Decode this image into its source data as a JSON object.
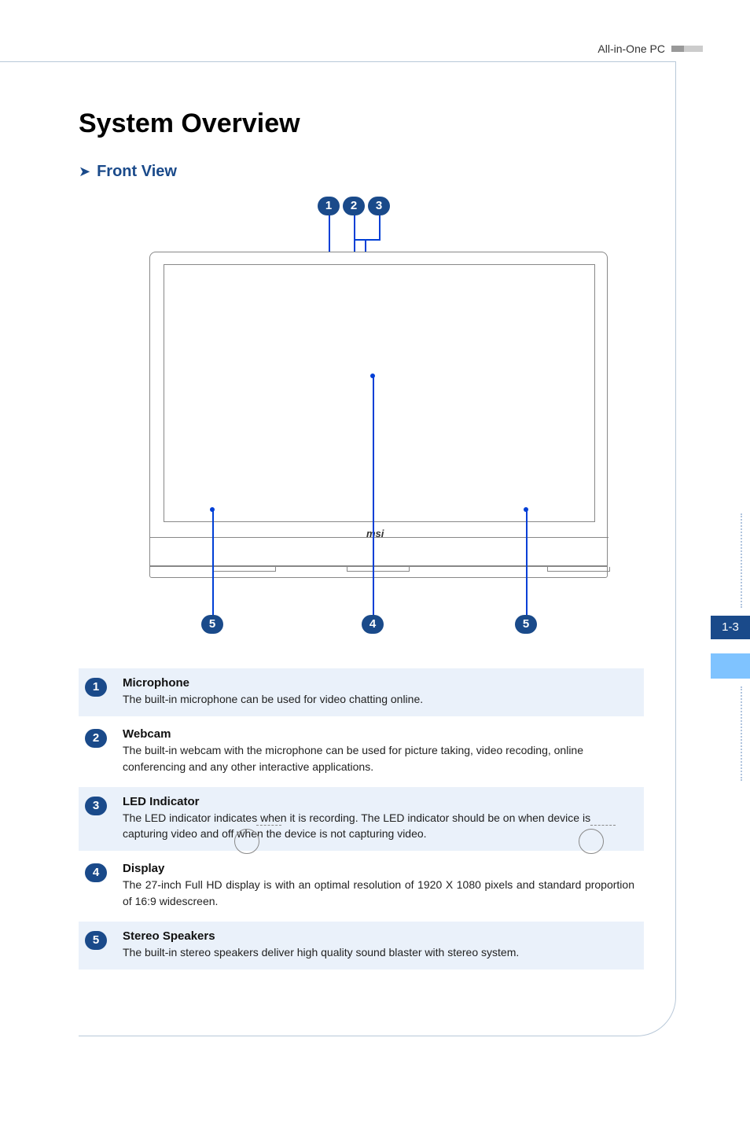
{
  "header": {
    "label": "All-in-One PC"
  },
  "main_title": "System Overview",
  "sub_title": "Front View",
  "side_tab": "1-3",
  "diagram": {
    "logo": "msi",
    "callouts_top": [
      "1",
      "2",
      "3"
    ],
    "callouts_bottom": [
      "5",
      "4",
      "5"
    ]
  },
  "items": [
    {
      "num": "1",
      "title": "Microphone",
      "desc": "The built-in microphone can be used for video chatting online.",
      "shaded": true,
      "justified": false
    },
    {
      "num": "2",
      "title": "Webcam",
      "desc": "The built-in webcam with the microphone can be used for picture taking, video recoding, online conferencing and any other interactive applications.",
      "shaded": false,
      "justified": false
    },
    {
      "num": "3",
      "title": "LED Indicator",
      "desc": "The LED indicator indicates when it is recording. The LED indicator should be on when device is capturing video and off when the device is not capturing video.",
      "shaded": true,
      "justified": false
    },
    {
      "num": "4",
      "title": "Display",
      "desc": "The 27-inch Full HD display is with an optimal resolution of 1920 X 1080 pixels and standard proportion of 16:9 widescreen.",
      "shaded": false,
      "justified": true
    },
    {
      "num": "5",
      "title": "Stereo Speakers",
      "desc": "The built-in stereo speakers deliver high quality sound blaster with stereo system.",
      "shaded": true,
      "justified": false
    }
  ],
  "colors": {
    "callout_bg": "#1a4a8a",
    "callout_line": "#003fd6",
    "shaded_bg": "#eaf1fa",
    "frame_border": "#b8c8d8",
    "sub_title": "#1a4a8a",
    "side_light": "#7fc3ff"
  }
}
